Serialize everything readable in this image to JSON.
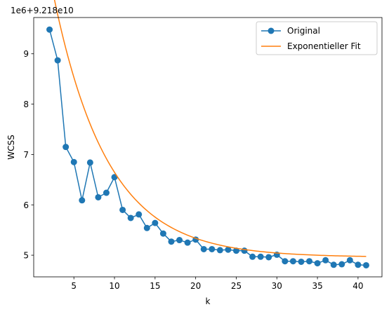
{
  "chart_data": {
    "type": "line",
    "xlabel": "k",
    "ylabel": "WCSS",
    "offset_text": "1e6+9.218e10",
    "xlim": [
      0.05,
      42.95
    ],
    "ylim": [
      4.57,
      9.72
    ],
    "xticks": [
      5,
      10,
      15,
      20,
      25,
      30,
      35,
      40
    ],
    "yticks": [
      5,
      6,
      7,
      8,
      9
    ],
    "grid": false,
    "legend_position": "top-right",
    "series": [
      {
        "name": "Original",
        "color": "#1f77b4",
        "marker": "circle",
        "x": [
          2,
          3,
          4,
          5,
          6,
          7,
          8,
          9,
          10,
          11,
          12,
          13,
          14,
          15,
          16,
          17,
          18,
          19,
          20,
          21,
          22,
          23,
          24,
          25,
          26,
          27,
          28,
          29,
          30,
          31,
          32,
          33,
          34,
          35,
          36,
          37,
          38,
          39,
          40,
          41
        ],
        "y": [
          9.48,
          8.87,
          7.15,
          6.85,
          6.09,
          6.84,
          6.15,
          6.24,
          6.55,
          5.9,
          5.74,
          5.81,
          5.54,
          5.64,
          5.43,
          5.27,
          5.3,
          5.25,
          5.31,
          5.12,
          5.12,
          5.1,
          5.11,
          5.09,
          5.09,
          4.97,
          4.97,
          4.96,
          5.01,
          4.88,
          4.88,
          4.87,
          4.88,
          4.84,
          4.9,
          4.81,
          4.82,
          4.9,
          4.81,
          4.8
        ]
      },
      {
        "name": "Exponentieller Fit",
        "color": "#ff7f0e",
        "marker": "none",
        "fit": {
          "a": 5.6,
          "b": 0.15,
          "c": 4.96
        },
        "x_range": [
          2,
          41
        ]
      }
    ]
  }
}
